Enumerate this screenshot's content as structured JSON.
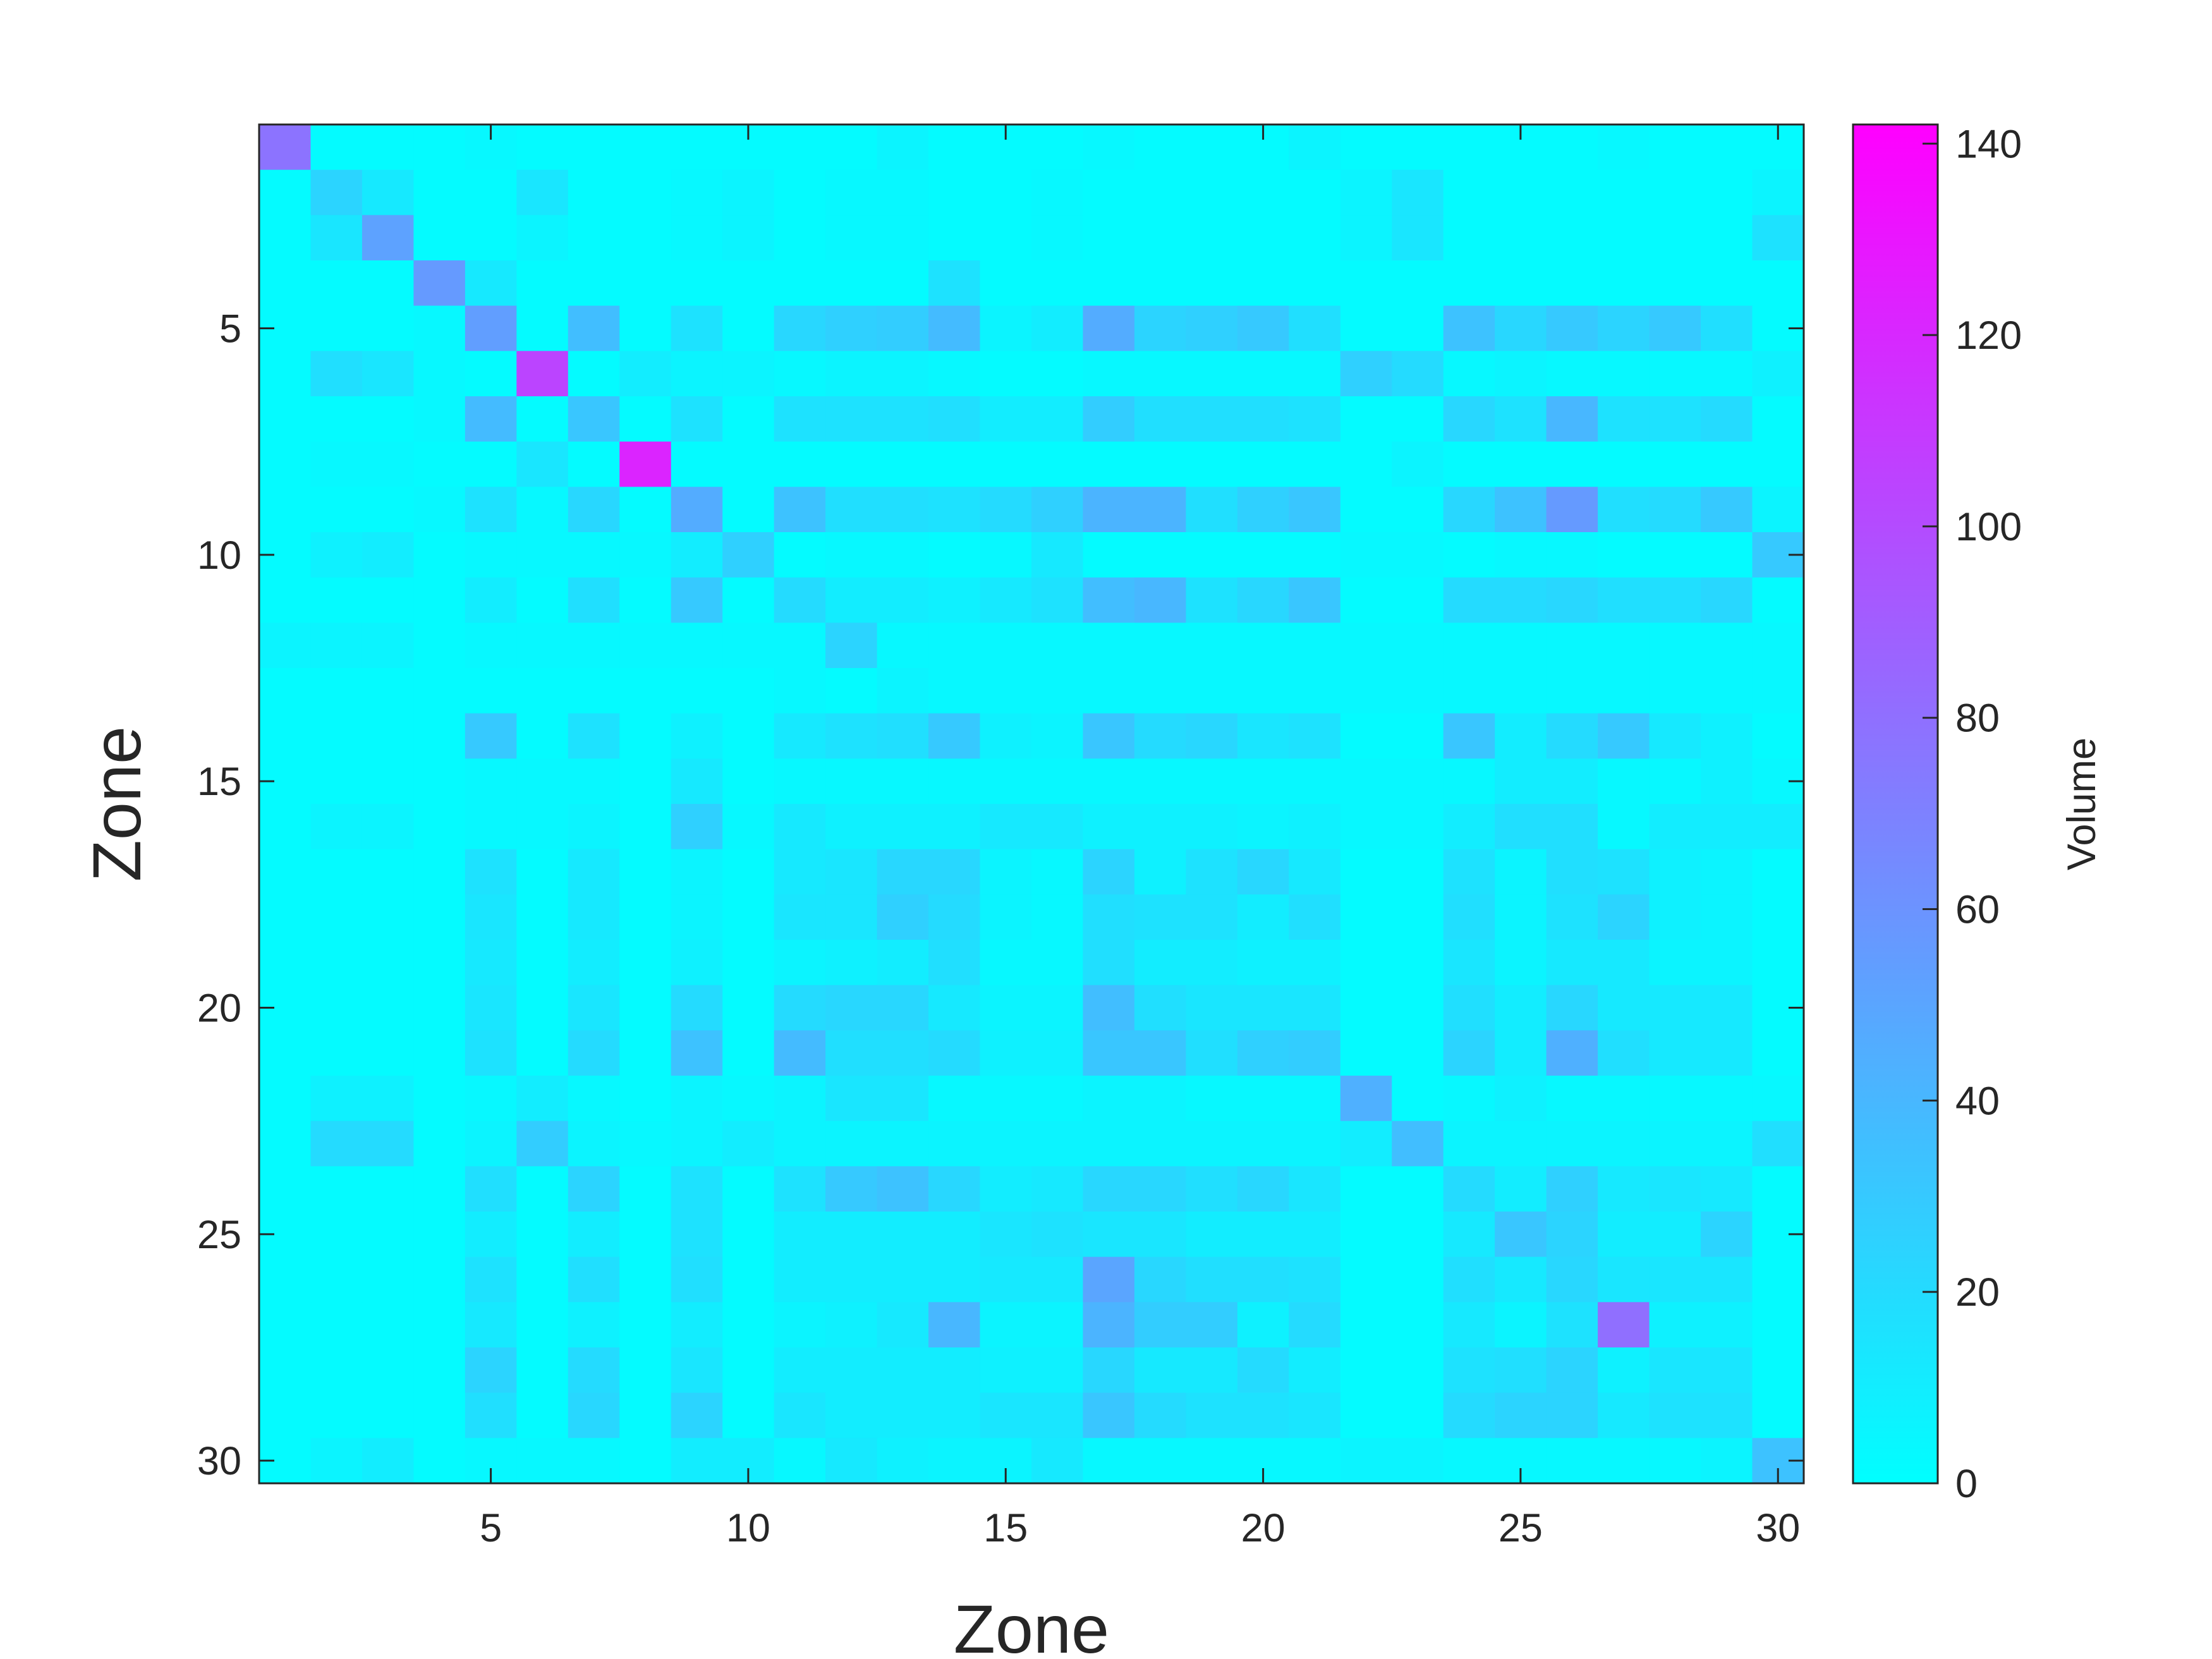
{
  "chart_data": {
    "type": "heatmap",
    "title": "",
    "xlabel": "Zone",
    "ylabel": "Zone",
    "colorbar_label": "Volume",
    "colormap": "cool",
    "colormap_start": "#00ffff",
    "colormap_end": "#ff00ff",
    "clim": [
      0,
      142
    ],
    "colorbar_ticks": [
      "0",
      "20",
      "40",
      "60",
      "80",
      "100",
      "120",
      "140"
    ],
    "xlim": [
      0.5,
      30.5
    ],
    "ylim": [
      0.5,
      30.5
    ],
    "y_direction": "reverse",
    "x_ticks": [
      "5",
      "10",
      "15",
      "20",
      "25",
      "30"
    ],
    "y_ticks": [
      "5",
      "10",
      "15",
      "20",
      "25",
      "30"
    ],
    "x_categories": [
      1,
      2,
      3,
      4,
      5,
      6,
      7,
      8,
      9,
      10,
      11,
      12,
      13,
      14,
      15,
      16,
      17,
      18,
      19,
      20,
      21,
      22,
      23,
      24,
      25,
      26,
      27,
      28,
      29,
      30
    ],
    "y_categories": [
      1,
      2,
      3,
      4,
      5,
      6,
      7,
      8,
      9,
      10,
      11,
      12,
      13,
      14,
      15,
      16,
      17,
      18,
      19,
      20,
      21,
      22,
      23,
      24,
      25,
      26,
      27,
      28,
      29,
      30
    ],
    "values": [
      [
        78,
        2,
        2,
        2,
        4,
        2,
        2,
        2,
        2,
        2,
        2,
        2,
        6,
        2,
        2,
        2,
        4,
        2,
        2,
        2,
        6,
        2,
        2,
        2,
        2,
        2,
        4,
        2,
        2,
        2
      ],
      [
        2,
        24,
        12,
        2,
        2,
        14,
        2,
        2,
        4,
        6,
        2,
        4,
        4,
        2,
        2,
        4,
        2,
        2,
        2,
        2,
        2,
        6,
        14,
        2,
        2,
        2,
        2,
        2,
        2,
        6
      ],
      [
        2,
        14,
        52,
        2,
        2,
        6,
        2,
        2,
        4,
        6,
        2,
        4,
        4,
        2,
        2,
        4,
        2,
        2,
        2,
        2,
        2,
        6,
        14,
        2,
        2,
        2,
        2,
        2,
        2,
        16
      ],
      [
        2,
        2,
        2,
        56,
        12,
        2,
        2,
        2,
        2,
        2,
        2,
        2,
        2,
        16,
        2,
        2,
        2,
        2,
        2,
        2,
        2,
        2,
        2,
        2,
        2,
        2,
        2,
        2,
        2,
        2
      ],
      [
        2,
        2,
        2,
        4,
        54,
        2,
        36,
        2,
        16,
        2,
        22,
        26,
        28,
        38,
        6,
        10,
        46,
        24,
        26,
        30,
        18,
        2,
        2,
        34,
        22,
        30,
        24,
        30,
        18,
        2
      ],
      [
        2,
        18,
        14,
        4,
        2,
        104,
        2,
        10,
        6,
        6,
        4,
        6,
        6,
        4,
        2,
        2,
        4,
        4,
        4,
        4,
        4,
        26,
        20,
        4,
        6,
        4,
        4,
        4,
        4,
        8
      ],
      [
        2,
        2,
        2,
        4,
        38,
        2,
        32,
        2,
        16,
        2,
        16,
        16,
        16,
        18,
        10,
        10,
        28,
        18,
        18,
        18,
        16,
        2,
        2,
        22,
        16,
        40,
        16,
        16,
        20,
        2
      ],
      [
        2,
        4,
        4,
        2,
        2,
        14,
        2,
        122,
        2,
        2,
        2,
        2,
        2,
        2,
        2,
        2,
        2,
        2,
        2,
        2,
        2,
        2,
        6,
        2,
        2,
        2,
        2,
        2,
        2,
        2
      ],
      [
        2,
        2,
        2,
        4,
        16,
        4,
        22,
        2,
        46,
        2,
        34,
        18,
        18,
        16,
        20,
        26,
        42,
        42,
        18,
        26,
        32,
        2,
        2,
        22,
        34,
        56,
        18,
        20,
        30,
        6
      ],
      [
        2,
        8,
        10,
        2,
        4,
        4,
        4,
        4,
        10,
        26,
        2,
        4,
        4,
        2,
        4,
        12,
        2,
        2,
        2,
        2,
        2,
        4,
        4,
        2,
        4,
        4,
        2,
        2,
        2,
        30
      ],
      [
        2,
        2,
        2,
        2,
        10,
        2,
        18,
        2,
        30,
        2,
        20,
        10,
        10,
        8,
        12,
        16,
        36,
        40,
        16,
        22,
        32,
        2,
        2,
        20,
        20,
        22,
        18,
        18,
        22,
        2
      ],
      [
        6,
        6,
        6,
        2,
        4,
        4,
        4,
        4,
        4,
        4,
        4,
        24,
        4,
        4,
        4,
        4,
        4,
        4,
        4,
        4,
        4,
        4,
        4,
        4,
        4,
        4,
        4,
        4,
        4,
        4
      ],
      [
        2,
        2,
        2,
        2,
        2,
        2,
        2,
        2,
        2,
        2,
        4,
        2,
        6,
        4,
        4,
        4,
        4,
        4,
        4,
        4,
        4,
        4,
        4,
        4,
        4,
        4,
        4,
        4,
        4,
        4
      ],
      [
        2,
        2,
        2,
        2,
        30,
        2,
        16,
        2,
        8,
        2,
        12,
        16,
        18,
        30,
        8,
        6,
        32,
        20,
        22,
        14,
        16,
        2,
        2,
        32,
        10,
        20,
        30,
        12,
        8,
        2
      ],
      [
        2,
        2,
        2,
        2,
        4,
        4,
        4,
        2,
        12,
        2,
        4,
        4,
        4,
        4,
        4,
        4,
        4,
        4,
        4,
        4,
        4,
        4,
        4,
        4,
        10,
        10,
        4,
        4,
        8,
        4
      ],
      [
        2,
        6,
        6,
        2,
        4,
        4,
        6,
        2,
        26,
        4,
        12,
        8,
        8,
        8,
        12,
        12,
        8,
        8,
        8,
        6,
        8,
        4,
        4,
        10,
        18,
        18,
        4,
        10,
        10,
        10
      ],
      [
        2,
        2,
        2,
        2,
        16,
        2,
        12,
        2,
        6,
        2,
        12,
        14,
        22,
        22,
        6,
        4,
        24,
        8,
        16,
        22,
        12,
        2,
        2,
        16,
        6,
        18,
        16,
        8,
        6,
        2
      ],
      [
        2,
        2,
        2,
        2,
        14,
        2,
        12,
        2,
        6,
        2,
        14,
        14,
        26,
        20,
        6,
        4,
        18,
        16,
        16,
        10,
        18,
        2,
        2,
        18,
        6,
        16,
        24,
        8,
        6,
        2
      ],
      [
        2,
        2,
        2,
        2,
        12,
        2,
        10,
        2,
        8,
        2,
        6,
        8,
        10,
        18,
        4,
        4,
        18,
        10,
        10,
        8,
        8,
        2,
        2,
        14,
        6,
        12,
        12,
        6,
        6,
        2
      ],
      [
        2,
        2,
        2,
        2,
        14,
        2,
        14,
        2,
        20,
        2,
        20,
        22,
        22,
        12,
        6,
        6,
        36,
        18,
        14,
        14,
        14,
        2,
        2,
        18,
        10,
        22,
        12,
        12,
        12,
        2
      ],
      [
        2,
        2,
        2,
        2,
        16,
        2,
        20,
        2,
        34,
        2,
        38,
        18,
        18,
        20,
        8,
        8,
        32,
        32,
        18,
        26,
        28,
        2,
        2,
        24,
        10,
        44,
        18,
        12,
        12,
        2
      ],
      [
        2,
        8,
        8,
        2,
        4,
        10,
        4,
        2,
        6,
        4,
        6,
        14,
        14,
        4,
        4,
        4,
        6,
        6,
        4,
        4,
        4,
        44,
        2,
        4,
        8,
        4,
        4,
        4,
        4,
        4
      ],
      [
        2,
        20,
        20,
        2,
        6,
        28,
        6,
        4,
        6,
        10,
        6,
        6,
        6,
        6,
        6,
        6,
        6,
        6,
        6,
        6,
        6,
        10,
        36,
        6,
        6,
        6,
        6,
        6,
        6,
        18
      ],
      [
        2,
        2,
        2,
        2,
        18,
        2,
        24,
        2,
        16,
        2,
        16,
        30,
        34,
        22,
        10,
        12,
        22,
        22,
        18,
        22,
        14,
        2,
        2,
        20,
        10,
        26,
        12,
        14,
        12,
        2
      ],
      [
        2,
        2,
        2,
        2,
        10,
        2,
        10,
        2,
        16,
        2,
        10,
        10,
        10,
        10,
        14,
        16,
        14,
        14,
        10,
        10,
        10,
        2,
        2,
        12,
        32,
        24,
        10,
        10,
        24,
        2
      ],
      [
        2,
        2,
        2,
        2,
        16,
        2,
        18,
        2,
        18,
        2,
        10,
        10,
        10,
        10,
        12,
        12,
        50,
        22,
        18,
        18,
        16,
        2,
        2,
        18,
        12,
        22,
        14,
        14,
        14,
        2
      ],
      [
        2,
        2,
        2,
        2,
        12,
        2,
        8,
        2,
        10,
        2,
        6,
        8,
        12,
        40,
        6,
        6,
        42,
        28,
        28,
        8,
        20,
        2,
        2,
        12,
        6,
        16,
        80,
        8,
        8,
        2
      ],
      [
        2,
        2,
        2,
        2,
        24,
        2,
        20,
        2,
        14,
        2,
        10,
        10,
        10,
        10,
        8,
        8,
        22,
        12,
        12,
        20,
        10,
        2,
        2,
        16,
        18,
        24,
        8,
        14,
        14,
        2
      ],
      [
        2,
        2,
        2,
        2,
        18,
        2,
        22,
        2,
        24,
        2,
        14,
        10,
        10,
        10,
        14,
        14,
        32,
        20,
        16,
        16,
        14,
        2,
        2,
        20,
        24,
        24,
        12,
        16,
        16,
        2
      ],
      [
        2,
        6,
        10,
        2,
        4,
        4,
        4,
        2,
        10,
        10,
        4,
        12,
        8,
        6,
        6,
        12,
        4,
        4,
        4,
        4,
        4,
        6,
        6,
        4,
        4,
        4,
        4,
        4,
        6,
        34
      ]
    ]
  }
}
